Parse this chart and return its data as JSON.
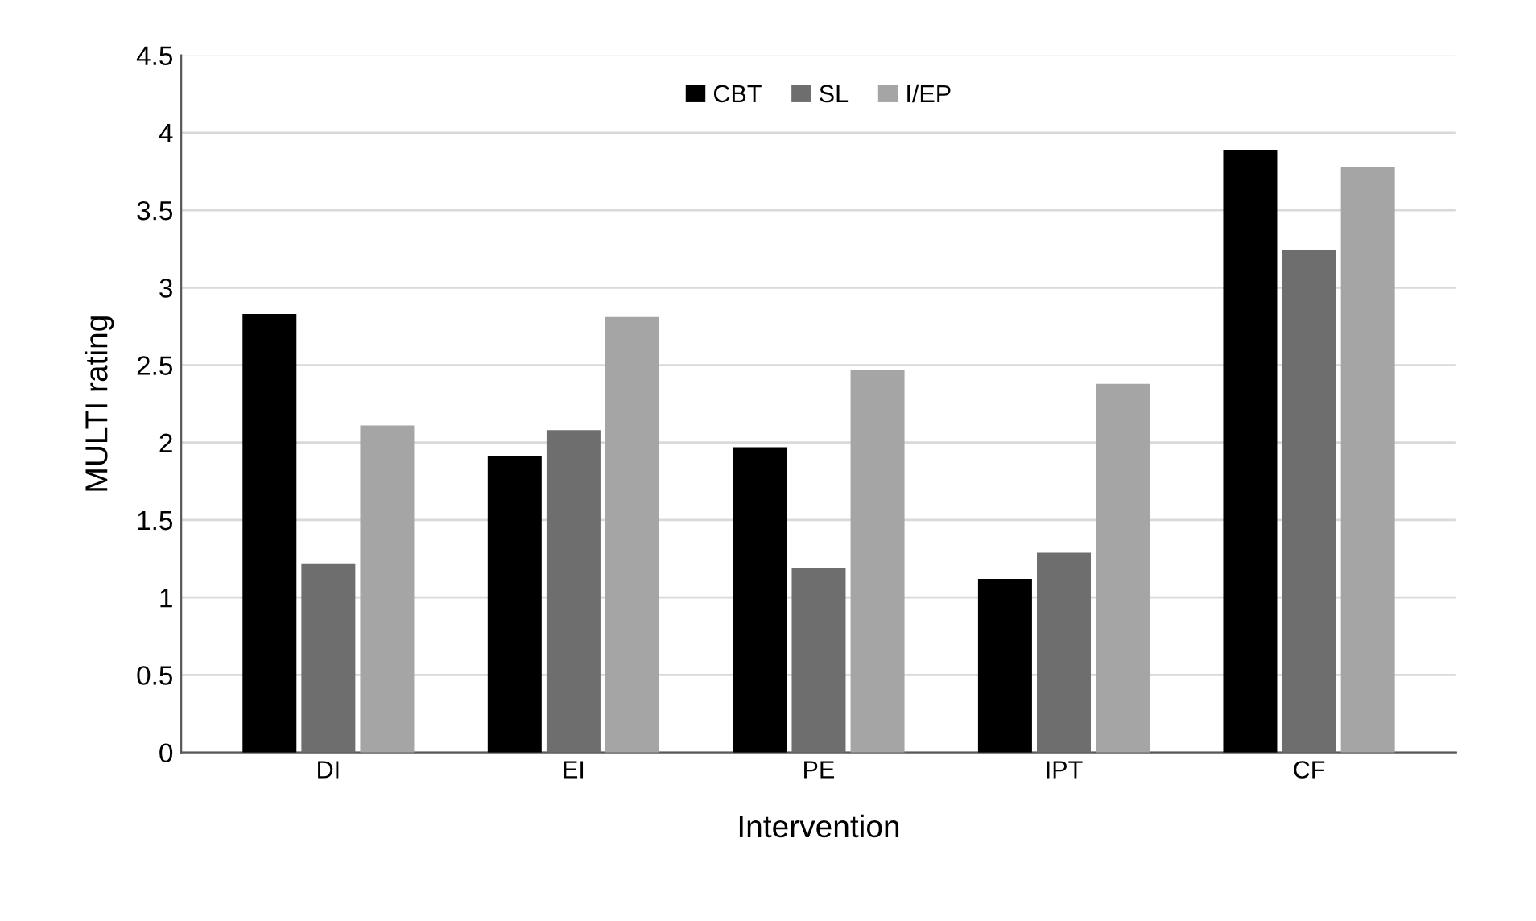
{
  "chart_data": {
    "type": "bar",
    "xlabel": "Intervention",
    "ylabel": "MULTI rating",
    "categories": [
      "DI",
      "EI",
      "PE",
      "IPT",
      "CF"
    ],
    "series": [
      {
        "name": "CBT",
        "color": "#000000",
        "values": [
          2.83,
          1.91,
          1.97,
          1.12,
          3.89
        ]
      },
      {
        "name": "SL",
        "color": "#6e6e6e",
        "values": [
          1.22,
          2.08,
          1.19,
          1.29,
          3.24
        ]
      },
      {
        "name": "I/EP",
        "color": "#a5a5a5",
        "values": [
          2.11,
          2.81,
          2.47,
          2.38,
          3.78
        ]
      }
    ],
    "ylim": [
      0,
      4.5
    ],
    "yticks": [
      0,
      0.5,
      1,
      1.5,
      2,
      2.5,
      3,
      3.5,
      4,
      4.5
    ],
    "grid": "y",
    "legend": "top"
  }
}
